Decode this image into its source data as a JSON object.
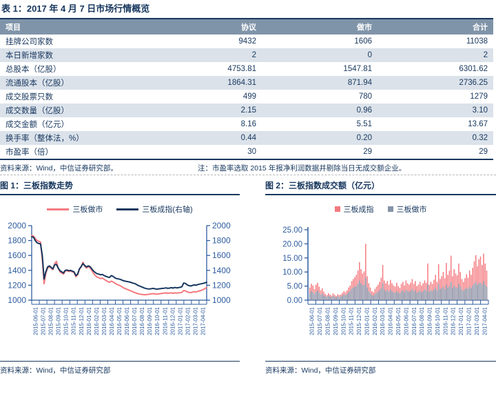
{
  "doc": {
    "table_title": "表 1：2017 年 4 月 7 日市场行情概览",
    "table_source": "资料来源：Wind，中信证券研究部。",
    "table_note": "注：市盈率选取 2015 年报净利润数据并剔除当日无成交额企业。",
    "fig1_title": "图 1：三板指数走势",
    "fig2_title": "图 2：三板指数成交额（亿元）",
    "fig1_source": "资料来源：Wind，中信证券研究部",
    "fig2_source": "资料来源：Wind，中信证券研究部"
  },
  "table": {
    "headers": [
      "项目",
      "协议",
      "做市",
      "合计"
    ],
    "rows": [
      [
        "挂牌公司家数",
        "9432",
        "1606",
        "11038"
      ],
      [
        "本日新增家数",
        "2",
        "0",
        "2"
      ],
      [
        "总股本（亿股）",
        "4753.81",
        "1547.81",
        "6301.62"
      ],
      [
        "流通股本（亿股）",
        "1864.31",
        "871.94",
        "2736.25"
      ],
      [
        "成交股票只数",
        "499",
        "780",
        "1279"
      ],
      [
        "成交数量（亿股）",
        "2.15",
        "0.96",
        "3.10"
      ],
      [
        "成交金额（亿元）",
        "8.16",
        "5.51",
        "13.67"
      ],
      [
        "换手率（整体法，%）",
        "0.44",
        "0.20",
        "0.32"
      ],
      [
        "市盈率（倍）",
        "30",
        "29",
        "29"
      ]
    ]
  },
  "colors": {
    "navy": "#17375E",
    "pink": "#F4797F",
    "bar_gray": "#8493A8",
    "axis_blue": "#2E5C9F",
    "header_bg": "#8094A9",
    "row_alt_bg": "#DBE2EA"
  },
  "chart_data": [
    {
      "type": "line",
      "title": "三板指数走势",
      "ylim": [
        1000,
        2000
      ],
      "y_ticks": [
        1000,
        1200,
        1400,
        1600,
        1800,
        2000
      ],
      "dual_axis": true,
      "legend_position": "top",
      "grid": false,
      "x_labels": [
        "2015-06-01",
        "2015-07-01",
        "2015-08-01",
        "2015-09-01",
        "2015-10-01",
        "2015-11-01",
        "2015-12-01",
        "2016-01-01",
        "2016-02-01",
        "2016-03-01",
        "2016-04-01",
        "2016-05-01",
        "2016-06-01",
        "2016-07-01",
        "2016-08-01",
        "2016-09-01",
        "2016-10-01",
        "2016-11-01",
        "2016-12-01",
        "2017-01-01",
        "2017-02-01",
        "2017-03-01",
        "2017-04-01"
      ],
      "series": [
        {
          "name": "三板做市",
          "color": "#F4797F",
          "axis": "left",
          "values": [
            1870,
            1860,
            1830,
            1800,
            1790,
            1780,
            1550,
            1220,
            1360,
            1430,
            1450,
            1430,
            1410,
            1490,
            1520,
            1430,
            1380,
            1365,
            1350,
            1390,
            1395,
            1385,
            1390,
            1380,
            1370,
            1315,
            1340,
            1415,
            1445,
            1510,
            1455,
            1430,
            1450,
            1435,
            1400,
            1360,
            1330,
            1310,
            1300,
            1290,
            1295,
            1280,
            1265,
            1250,
            1240,
            1255,
            1245,
            1230,
            1215,
            1205,
            1195,
            1180,
            1165,
            1155,
            1145,
            1135,
            1125,
            1115,
            1105,
            1095,
            1088,
            1082,
            1078,
            1075,
            1072,
            1075,
            1078,
            1082,
            1085,
            1088,
            1082,
            1080,
            1085,
            1088,
            1092,
            1095,
            1098,
            1092,
            1095,
            1098,
            1092,
            1098,
            1095,
            1098,
            1100,
            1105,
            1130,
            1125,
            1110,
            1105,
            1102,
            1108,
            1112,
            1110,
            1118,
            1125,
            1132,
            1142,
            1155,
            1170
          ]
        },
        {
          "name": "三板成指(右轴)",
          "color": "#17375E",
          "axis": "right",
          "values": [
            1850,
            1845,
            1800,
            1770,
            1760,
            1755,
            1600,
            1285,
            1380,
            1445,
            1460,
            1440,
            1420,
            1475,
            1480,
            1430,
            1395,
            1380,
            1365,
            1400,
            1405,
            1395,
            1400,
            1390,
            1380,
            1330,
            1350,
            1420,
            1450,
            1490,
            1465,
            1445,
            1460,
            1450,
            1420,
            1390,
            1370,
            1355,
            1350,
            1340,
            1345,
            1330,
            1320,
            1310,
            1305,
            1330,
            1320,
            1300,
            1290,
            1285,
            1280,
            1270,
            1260,
            1255,
            1250,
            1245,
            1240,
            1230,
            1225,
            1215,
            1200,
            1190,
            1180,
            1170,
            1160,
            1155,
            1150,
            1152,
            1155,
            1158,
            1150,
            1148,
            1152,
            1155,
            1158,
            1160,
            1165,
            1158,
            1162,
            1168,
            1162,
            1170,
            1165,
            1168,
            1172,
            1180,
            1230,
            1225,
            1205,
            1195,
            1190,
            1198,
            1205,
            1200,
            1210,
            1215,
            1220,
            1225,
            1232,
            1240
          ]
        }
      ]
    },
    {
      "type": "bar",
      "title": "三板指数成交额（亿元）",
      "ylim": [
        0,
        25
      ],
      "y_ticks": [
        0,
        5,
        10,
        15,
        20,
        25
      ],
      "legend_position": "top",
      "grid": false,
      "x_labels": [
        "2015-06-01",
        "2015-07-01",
        "2015-08-01",
        "2015-09-01",
        "2015-10-01",
        "2015-11-01",
        "2015-12-01",
        "2016-01-01",
        "2016-02-01",
        "2016-03-01",
        "2016-04-01",
        "2016-05-01",
        "2016-06-01",
        "2016-07-01",
        "2016-08-01",
        "2016-09-01",
        "2016-10-01",
        "2016-11-01",
        "2016-12-01",
        "2017-01-01",
        "2017-02-01",
        "2017-03-01",
        "2017-04-01"
      ],
      "series": [
        {
          "name": "三板成指",
          "color": "#F4797F",
          "values": [
            4.5,
            5.8,
            5.2,
            4.0,
            5.5,
            6.2,
            4.8,
            3.5,
            4.2,
            3.0,
            2.2,
            1.8,
            2.5,
            2.0,
            1.6,
            2.4,
            1.9,
            1.5,
            2.1,
            1.8,
            2.0,
            2.6,
            3.2,
            2.8,
            3.5,
            4.5,
            5.2,
            6.8,
            7.5,
            8.2,
            9.0,
            10.5,
            13.5,
            11.0,
            9.5,
            10.2,
            20.0,
            8.5,
            6.0,
            4.5,
            3.2,
            2.8,
            4.0,
            4.8,
            5.5,
            6.5,
            8.0,
            12.5,
            7.0,
            6.0,
            6.8,
            5.5,
            7.2,
            6.0,
            5.2,
            4.8,
            6.2,
            5.0,
            4.4,
            5.8,
            6.5,
            5.2,
            7.0,
            6.0,
            5.5,
            6.2,
            7.5,
            5.8,
            6.8,
            5.0,
            5.5,
            6.5,
            5.2,
            6.0,
            7.0,
            6.2,
            13.0,
            5.5,
            6.5,
            5.8,
            7.2,
            9.0,
            6.5,
            12.8,
            7.5,
            8.5,
            10.0,
            7.8,
            13.2,
            9.0,
            10.5,
            15.8,
            8.5,
            11.0,
            9.5,
            8.8,
            13.0,
            10.0,
            7.5,
            6.5,
            7.8,
            9.2,
            8.0,
            10.5,
            9.0,
            11.5,
            13.8,
            16.0,
            12.0,
            14.5,
            15.5,
            12.5,
            16.5,
            13.0,
            10.5
          ]
        },
        {
          "name": "三板做市",
          "color": "#8493A8",
          "values": [
            2.5,
            3.2,
            2.8,
            2.2,
            3.0,
            3.5,
            2.6,
            2.0,
            2.4,
            1.8,
            1.4,
            1.2,
            1.6,
            1.3,
            1.0,
            1.5,
            1.2,
            1.0,
            1.4,
            1.1,
            1.3,
            1.7,
            2.0,
            1.8,
            2.2,
            2.8,
            3.2,
            4.0,
            4.5,
            4.8,
            5.0,
            5.8,
            7.0,
            6.0,
            5.2,
            5.5,
            8.0,
            4.5,
            3.2,
            2.5,
            1.8,
            1.6,
            2.2,
            2.6,
            3.0,
            3.5,
            4.2,
            6.0,
            3.8,
            3.2,
            3.6,
            3.0,
            3.8,
            3.2,
            2.8,
            2.6,
            3.3,
            2.7,
            2.4,
            3.1,
            3.5,
            2.8,
            3.7,
            3.2,
            3.0,
            3.3,
            4.0,
            3.1,
            3.6,
            2.7,
            3.0,
            3.5,
            2.8,
            3.2,
            3.8,
            3.3,
            5.5,
            3.0,
            3.5,
            3.1,
            3.8,
            4.5,
            3.5,
            5.8,
            4.0,
            4.2,
            4.8,
            3.9,
            5.5,
            4.4,
            5.0,
            6.5,
            4.2,
            5.2,
            4.6,
            4.3,
            5.8,
            4.8,
            3.8,
            3.3,
            3.9,
            4.4,
            4.0,
            4.8,
            4.3,
            5.2,
            5.8,
            6.5,
            5.4,
            6.0,
            6.2,
            5.5,
            6.8,
            5.6,
            4.8
          ]
        }
      ]
    }
  ]
}
